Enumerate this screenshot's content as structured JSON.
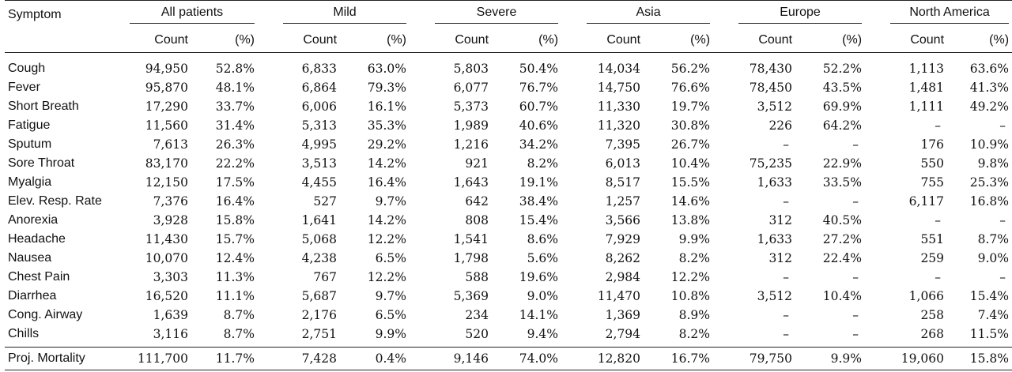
{
  "header": {
    "symptom": "Symptom",
    "groups": [
      "All patients",
      "Mild",
      "Severe",
      "Asia",
      "Europe",
      "North America"
    ],
    "count_label": "Count",
    "pct_label": "(%)"
  },
  "rows": [
    {
      "label": "Cough",
      "cells": [
        [
          "94,950",
          "52.8%"
        ],
        [
          "6,833",
          "63.0%"
        ],
        [
          "5,803",
          "50.4%"
        ],
        [
          "14,034",
          "56.2%"
        ],
        [
          "78,430",
          "52.2%"
        ],
        [
          "1,113",
          "63.6%"
        ]
      ]
    },
    {
      "label": "Fever",
      "cells": [
        [
          "95,870",
          "48.1%"
        ],
        [
          "6,864",
          "79.3%"
        ],
        [
          "6,077",
          "76.7%"
        ],
        [
          "14,750",
          "76.6%"
        ],
        [
          "78,450",
          "43.5%"
        ],
        [
          "1,481",
          "41.3%"
        ]
      ]
    },
    {
      "label": "Short Breath",
      "cells": [
        [
          "17,290",
          "33.7%"
        ],
        [
          "6,006",
          "16.1%"
        ],
        [
          "5,373",
          "60.7%"
        ],
        [
          "11,330",
          "19.7%"
        ],
        [
          "3,512",
          "69.9%"
        ],
        [
          "1,111",
          "49.2%"
        ]
      ]
    },
    {
      "label": "Fatigue",
      "cells": [
        [
          "11,560",
          "31.4%"
        ],
        [
          "5,313",
          "35.3%"
        ],
        [
          "1,989",
          "40.6%"
        ],
        [
          "11,320",
          "30.8%"
        ],
        [
          "226",
          "64.2%"
        ],
        [
          "–",
          "–"
        ]
      ]
    },
    {
      "label": "Sputum",
      "cells": [
        [
          "7,613",
          "26.3%"
        ],
        [
          "4,995",
          "29.2%"
        ],
        [
          "1,216",
          "34.2%"
        ],
        [
          "7,395",
          "26.7%"
        ],
        [
          "–",
          "–"
        ],
        [
          "176",
          "10.9%"
        ]
      ]
    },
    {
      "label": "Sore Throat",
      "cells": [
        [
          "83,170",
          "22.2%"
        ],
        [
          "3,513",
          "14.2%"
        ],
        [
          "921",
          "8.2%"
        ],
        [
          "6,013",
          "10.4%"
        ],
        [
          "75,235",
          "22.9%"
        ],
        [
          "550",
          "9.8%"
        ]
      ]
    },
    {
      "label": "Myalgia",
      "cells": [
        [
          "12,150",
          "17.5%"
        ],
        [
          "4,455",
          "16.4%"
        ],
        [
          "1,643",
          "19.1%"
        ],
        [
          "8,517",
          "15.5%"
        ],
        [
          "1,633",
          "33.5%"
        ],
        [
          "755",
          "25.3%"
        ]
      ]
    },
    {
      "label": "Elev. Resp. Rate",
      "cells": [
        [
          "7,376",
          "16.4%"
        ],
        [
          "527",
          "9.7%"
        ],
        [
          "642",
          "38.4%"
        ],
        [
          "1,257",
          "14.6%"
        ],
        [
          "–",
          "–"
        ],
        [
          "6,117",
          "16.8%"
        ]
      ]
    },
    {
      "label": "Anorexia",
      "cells": [
        [
          "3,928",
          "15.8%"
        ],
        [
          "1,641",
          "14.2%"
        ],
        [
          "808",
          "15.4%"
        ],
        [
          "3,566",
          "13.8%"
        ],
        [
          "312",
          "40.5%"
        ],
        [
          "–",
          "–"
        ]
      ]
    },
    {
      "label": "Headache",
      "cells": [
        [
          "11,430",
          "15.7%"
        ],
        [
          "5,068",
          "12.2%"
        ],
        [
          "1,541",
          "8.6%"
        ],
        [
          "7,929",
          "9.9%"
        ],
        [
          "1,633",
          "27.2%"
        ],
        [
          "551",
          "8.7%"
        ]
      ]
    },
    {
      "label": "Nausea",
      "cells": [
        [
          "10,070",
          "12.4%"
        ],
        [
          "4,238",
          "6.5%"
        ],
        [
          "1,798",
          "5.6%"
        ],
        [
          "8,262",
          "8.2%"
        ],
        [
          "312",
          "22.4%"
        ],
        [
          "259",
          "9.0%"
        ]
      ]
    },
    {
      "label": "Chest Pain",
      "cells": [
        [
          "3,303",
          "11.3%"
        ],
        [
          "767",
          "12.2%"
        ],
        [
          "588",
          "19.6%"
        ],
        [
          "2,984",
          "12.2%"
        ],
        [
          "–",
          "–"
        ],
        [
          "–",
          "–"
        ]
      ]
    },
    {
      "label": "Diarrhea",
      "cells": [
        [
          "16,520",
          "11.1%"
        ],
        [
          "5,687",
          "9.7%"
        ],
        [
          "5,369",
          "9.0%"
        ],
        [
          "11,470",
          "10.8%"
        ],
        [
          "3,512",
          "10.4%"
        ],
        [
          "1,066",
          "15.4%"
        ]
      ]
    },
    {
      "label": "Cong. Airway",
      "cells": [
        [
          "1,639",
          "8.7%"
        ],
        [
          "2,176",
          "6.5%"
        ],
        [
          "234",
          "14.1%"
        ],
        [
          "1,369",
          "8.9%"
        ],
        [
          "–",
          "–"
        ],
        [
          "258",
          "7.4%"
        ]
      ]
    },
    {
      "label": "Chills",
      "cells": [
        [
          "3,116",
          "8.7%"
        ],
        [
          "2,751",
          "9.9%"
        ],
        [
          "520",
          "9.4%"
        ],
        [
          "2,794",
          "8.2%"
        ],
        [
          "–",
          "–"
        ],
        [
          "268",
          "11.5%"
        ]
      ]
    }
  ],
  "footer": {
    "label": "Proj. Mortality",
    "cells": [
      [
        "111,700",
        "11.7%"
      ],
      [
        "7,428",
        "0.4%"
      ],
      [
        "9,146",
        "74.0%"
      ],
      [
        "12,820",
        "16.7%"
      ],
      [
        "79,750",
        "9.9%"
      ],
      [
        "19,060",
        "15.8%"
      ]
    ]
  }
}
